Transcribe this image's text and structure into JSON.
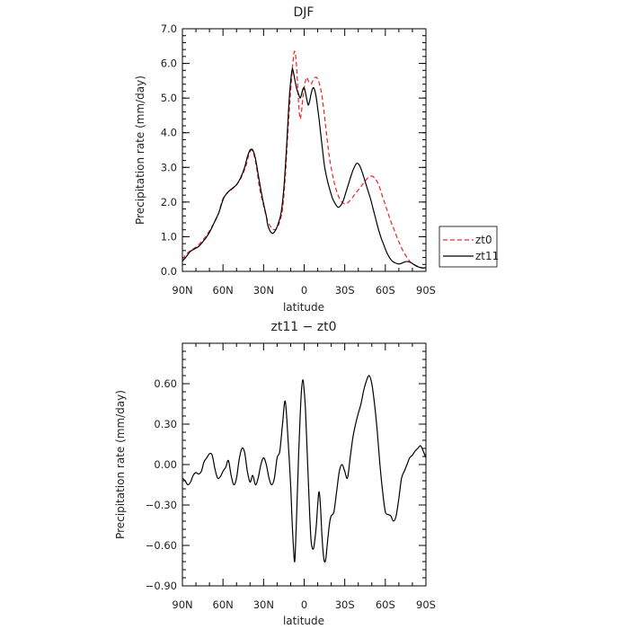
{
  "chart_data": [
    {
      "type": "line",
      "title": "DJF",
      "xlabel": "latitude",
      "ylabel": "Precipitation rate (mm/day)",
      "xlim": [
        90,
        -90
      ],
      "ylim": [
        0.0,
        7.0
      ],
      "x_ticks": [
        {
          "value": 90,
          "label": "90N"
        },
        {
          "value": 60,
          "label": "60N"
        },
        {
          "value": 30,
          "label": "30N"
        },
        {
          "value": 0,
          "label": "0"
        },
        {
          "value": -30,
          "label": "30S"
        },
        {
          "value": -60,
          "label": "60S"
        },
        {
          "value": -90,
          "label": "90S"
        }
      ],
      "y_ticks": [
        {
          "value": 0.0,
          "label": "0.0"
        },
        {
          "value": 1.0,
          "label": "1.0"
        },
        {
          "value": 2.0,
          "label": "2.0"
        },
        {
          "value": 3.0,
          "label": "3.0"
        },
        {
          "value": 4.0,
          "label": "4.0"
        },
        {
          "value": 5.0,
          "label": "5.0"
        },
        {
          "value": 6.0,
          "label": "6.0"
        },
        {
          "value": 7.0,
          "label": "7.0"
        }
      ],
      "grid": false,
      "legend": {
        "position": "right",
        "entries": [
          "zt0",
          "zt11"
        ]
      },
      "series": [
        {
          "name": "zt0",
          "color": "#e8262a",
          "dash": true,
          "x": [
            90,
            87,
            84,
            80,
            76,
            72,
            68,
            64,
            62,
            60,
            57,
            54,
            50,
            46,
            43,
            41,
            39,
            37,
            35,
            33,
            30,
            27,
            24,
            22,
            20,
            18,
            16,
            14,
            12,
            10,
            8,
            7,
            6,
            5,
            4,
            3,
            2,
            1,
            0,
            -1,
            -2,
            -3,
            -5,
            -7,
            -9,
            -11,
            -13,
            -15,
            -17,
            -19,
            -22,
            -25,
            -28,
            -31,
            -34,
            -37,
            -40,
            -43,
            -46,
            -49,
            -52,
            -55,
            -58,
            -61,
            -64,
            -67,
            -70,
            -73,
            -76,
            -79,
            -82,
            -85,
            -88,
            -90
          ],
          "y": [
            0.35,
            0.5,
            0.6,
            0.7,
            0.85,
            1.05,
            1.3,
            1.6,
            1.85,
            2.1,
            2.25,
            2.35,
            2.5,
            2.75,
            3.05,
            3.35,
            3.5,
            3.35,
            2.95,
            2.4,
            1.9,
            1.45,
            1.25,
            1.2,
            1.25,
            1.45,
            1.8,
            2.7,
            4.0,
            5.2,
            6.15,
            6.35,
            6.1,
            5.5,
            4.8,
            4.4,
            4.6,
            5.0,
            5.3,
            5.5,
            5.6,
            5.5,
            5.4,
            5.55,
            5.6,
            5.45,
            5.1,
            4.5,
            3.8,
            3.2,
            2.6,
            2.2,
            2.0,
            1.95,
            2.05,
            2.2,
            2.35,
            2.5,
            2.65,
            2.75,
            2.7,
            2.5,
            2.15,
            1.8,
            1.45,
            1.15,
            0.85,
            0.6,
            0.4,
            0.25,
            0.18,
            0.13,
            0.1,
            0.1
          ]
        },
        {
          "name": "zt11",
          "color": "#000000",
          "dash": false,
          "x": [
            90,
            88,
            86,
            84,
            81,
            78,
            75,
            72,
            69,
            66,
            63,
            61,
            59,
            56,
            53,
            50,
            47,
            44,
            42,
            40,
            38,
            36,
            34,
            32,
            30,
            28,
            27,
            25,
            23,
            21,
            19,
            17,
            15,
            13,
            11,
            9,
            8,
            7,
            6,
            5,
            4,
            3,
            2,
            1,
            0,
            -1,
            -2,
            -3,
            -4,
            -5,
            -6,
            -7,
            -8,
            -9,
            -10,
            -11,
            -12,
            -13,
            -15,
            -17,
            -19,
            -21,
            -23,
            -25,
            -27,
            -29,
            -31,
            -33,
            -35,
            -37,
            -39,
            -41,
            -43,
            -45,
            -47,
            -49,
            -51,
            -53,
            -55,
            -57,
            -59,
            -61,
            -63,
            -65,
            -67,
            -69,
            -71,
            -73,
            -75,
            -77,
            -79,
            -81,
            -83,
            -85,
            -87,
            -89,
            -90
          ],
          "y": [
            0.3,
            0.38,
            0.48,
            0.58,
            0.65,
            0.72,
            0.85,
            1.0,
            1.2,
            1.45,
            1.7,
            1.95,
            2.15,
            2.3,
            2.4,
            2.5,
            2.7,
            3.0,
            3.3,
            3.5,
            3.5,
            3.25,
            2.8,
            2.35,
            1.95,
            1.6,
            1.35,
            1.15,
            1.1,
            1.2,
            1.4,
            1.7,
            2.4,
            3.6,
            5.0,
            5.8,
            5.75,
            5.55,
            5.35,
            5.2,
            5.1,
            5.0,
            5.1,
            5.25,
            5.3,
            5.15,
            4.95,
            4.8,
            4.9,
            5.1,
            5.25,
            5.3,
            5.2,
            5.0,
            4.7,
            4.4,
            4.05,
            3.7,
            3.05,
            2.65,
            2.35,
            2.1,
            1.95,
            1.85,
            1.9,
            2.05,
            2.3,
            2.55,
            2.8,
            3.0,
            3.12,
            3.05,
            2.85,
            2.6,
            2.35,
            2.1,
            1.8,
            1.5,
            1.2,
            0.95,
            0.75,
            0.55,
            0.4,
            0.3,
            0.25,
            0.22,
            0.22,
            0.25,
            0.28,
            0.28,
            0.25,
            0.2,
            0.15,
            0.12,
            0.1,
            0.1,
            0.12
          ]
        }
      ]
    },
    {
      "type": "line",
      "title": "zt11 − zt0",
      "xlabel": "latitude",
      "ylabel": "Precipitation rate (mm/day)",
      "xlim": [
        90,
        -90
      ],
      "ylim": [
        -0.9,
        0.9
      ],
      "x_ticks": [
        {
          "value": 90,
          "label": "90N"
        },
        {
          "value": 60,
          "label": "60N"
        },
        {
          "value": 30,
          "label": "30N"
        },
        {
          "value": 0,
          "label": "0"
        },
        {
          "value": -30,
          "label": "30S"
        },
        {
          "value": -60,
          "label": "60S"
        },
        {
          "value": -90,
          "label": "90S"
        }
      ],
      "y_ticks": [
        {
          "value": -0.9,
          "label": "−0.90"
        },
        {
          "value": -0.6,
          "label": "−0.60"
        },
        {
          "value": -0.3,
          "label": "−0.30"
        },
        {
          "value": 0.0,
          "label": "0.00"
        },
        {
          "value": 0.3,
          "label": "0.30"
        },
        {
          "value": 0.6,
          "label": "0.60"
        }
      ],
      "grid": false,
      "series": [
        {
          "name": "",
          "color": "#000000",
          "dash": false,
          "x": [
            90,
            88,
            86,
            84,
            82,
            80,
            78,
            76,
            74,
            72,
            70,
            68,
            66,
            64,
            62,
            60,
            58,
            56,
            54,
            52,
            50,
            48,
            46,
            44,
            42,
            40,
            38,
            36,
            34,
            32,
            30,
            28,
            26,
            24,
            22,
            20,
            18,
            16,
            14,
            12,
            10,
            9,
            8,
            7,
            6,
            5,
            4,
            3,
            2,
            1,
            0,
            -1,
            -2,
            -3,
            -4,
            -5,
            -6,
            -7,
            -8,
            -9,
            -10,
            -11,
            -12,
            -13,
            -14,
            -15,
            -16,
            -17,
            -18,
            -19,
            -20,
            -22,
            -24,
            -26,
            -28,
            -30,
            -32,
            -34,
            -36,
            -38,
            -40,
            -42,
            -44,
            -46,
            -48,
            -50,
            -52,
            -54,
            -56,
            -58,
            -60,
            -62,
            -64,
            -66,
            -68,
            -70,
            -72,
            -74,
            -76,
            -78,
            -80,
            -82,
            -84,
            -86,
            -88,
            -90
          ],
          "y": [
            -0.1,
            -0.12,
            -0.15,
            -0.13,
            -0.08,
            -0.06,
            -0.07,
            -0.05,
            0.02,
            0.05,
            0.08,
            0.07,
            -0.03,
            -0.1,
            -0.09,
            -0.05,
            -0.02,
            0.03,
            -0.08,
            -0.15,
            -0.1,
            0.04,
            0.12,
            0.09,
            -0.05,
            -0.13,
            -0.08,
            -0.15,
            -0.1,
            0.0,
            0.05,
            0.0,
            -0.1,
            -0.15,
            -0.1,
            0.05,
            0.1,
            0.3,
            0.47,
            0.2,
            -0.15,
            -0.4,
            -0.6,
            -0.72,
            -0.5,
            -0.2,
            0.1,
            0.35,
            0.55,
            0.63,
            0.55,
            0.4,
            0.15,
            -0.1,
            -0.35,
            -0.55,
            -0.62,
            -0.62,
            -0.55,
            -0.45,
            -0.3,
            -0.2,
            -0.3,
            -0.5,
            -0.65,
            -0.72,
            -0.7,
            -0.6,
            -0.5,
            -0.42,
            -0.38,
            -0.35,
            -0.2,
            -0.05,
            0.0,
            -0.05,
            -0.1,
            0.05,
            0.2,
            0.3,
            0.38,
            0.45,
            0.55,
            0.62,
            0.66,
            0.6,
            0.45,
            0.25,
            0.0,
            -0.2,
            -0.35,
            -0.37,
            -0.38,
            -0.42,
            -0.38,
            -0.25,
            -0.1,
            -0.05,
            0.0,
            0.05,
            0.07,
            0.1,
            0.12,
            0.14,
            0.1,
            0.05
          ]
        }
      ]
    }
  ]
}
